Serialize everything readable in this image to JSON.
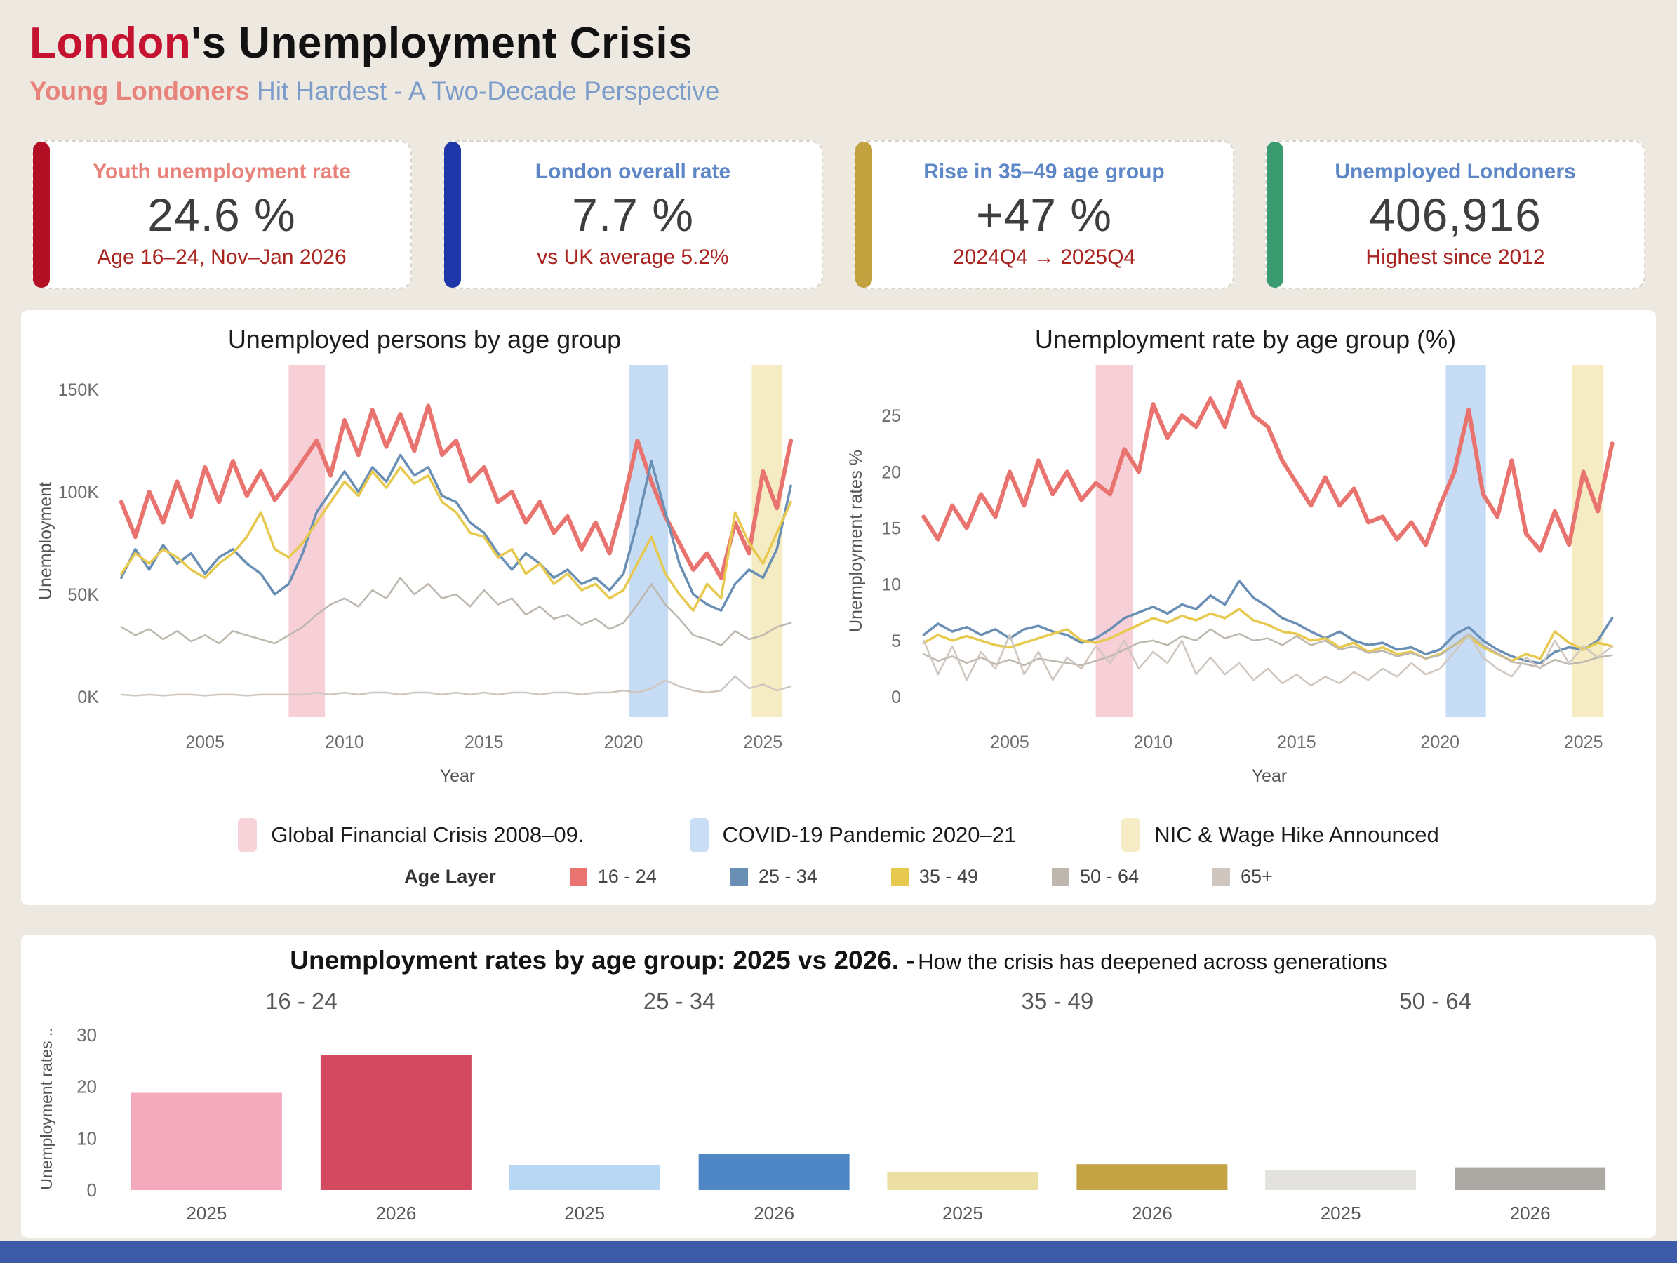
{
  "header": {
    "title_accent": "London",
    "title_rest": "'s Unemployment Crisis",
    "subtitle_accent": "Young Londoners",
    "subtitle_rest": " Hit Hardest - A Two-Decade Perspective"
  },
  "kpi_cards": [
    {
      "label": "Youth unemployment rate",
      "value": "24.6 %",
      "sub": "Age 16–24, Nov–Jan 2026",
      "accent": "#B30F24",
      "label_color": "#E8837B"
    },
    {
      "label": "London overall rate",
      "value": "7.7 %",
      "sub": "vs UK average 5.2%",
      "accent": "#1F36A8",
      "label_color": "#5D87C6"
    },
    {
      "label": "Rise in 35–49 age group",
      "value": "+47 %",
      "sub": "2024Q4 → 2025Q4",
      "accent": "#C2A23F",
      "label_color": "#5D87C6"
    },
    {
      "label": "Unemployed Londoners",
      "value": "406,916",
      "sub": "Highest since 2012",
      "accent": "#3B9B70",
      "label_color": "#5D87C6"
    }
  ],
  "legend": {
    "bands": [
      {
        "label": "Global Financial Crisis 2008–09.",
        "color": "#F7D2D9"
      },
      {
        "label": "COVID-19 Pandemic 2020–21",
        "color": "#C9DDF4"
      },
      {
        "label": "NIC & Wage Hike Announced",
        "color": "#F6EDC6"
      }
    ],
    "age": {
      "title": "Age Layer",
      "items": [
        {
          "label": "16 - 24",
          "color": "#E8736F"
        },
        {
          "label": "25 - 34",
          "color": "#6A8FB5"
        },
        {
          "label": "35 - 49",
          "color": "#E7C94F"
        },
        {
          "label": "50 - 64",
          "color": "#BDB7AE"
        },
        {
          "label": "65+",
          "color": "#CFC7BF"
        }
      ]
    }
  },
  "chart_data": [
    {
      "type": "line",
      "title": "Unemployed persons by age group",
      "xlabel": "Year",
      "ylabel": "Unemployment",
      "xlim": [
        2001.6,
        2026.5
      ],
      "ylim": [
        -10,
        162
      ],
      "yticks": [
        0,
        50,
        100,
        150
      ],
      "ytick_labels": [
        "0K",
        "50K",
        "100K",
        "150K"
      ],
      "xticks": [
        2005,
        2010,
        2015,
        2020,
        2025
      ],
      "bands": [
        {
          "name": "gfc",
          "from": 2008.0,
          "to": 2009.3,
          "color": "#F7CFD7"
        },
        {
          "name": "covid",
          "from": 2020.2,
          "to": 2021.6,
          "color": "#C6DCF4"
        },
        {
          "name": "nic",
          "from": 2024.6,
          "to": 2025.7,
          "color": "#F5ECC4"
        }
      ],
      "x": [
        2002,
        2002.5,
        2003,
        2003.5,
        2004,
        2004.5,
        2005,
        2005.5,
        2006,
        2006.5,
        2007,
        2007.5,
        2008,
        2008.5,
        2009,
        2009.5,
        2010,
        2010.5,
        2011,
        2011.5,
        2012,
        2012.5,
        2013,
        2013.5,
        2014,
        2014.5,
        2015,
        2015.5,
        2016,
        2016.5,
        2017,
        2017.5,
        2018,
        2018.5,
        2019,
        2019.5,
        2020,
        2020.5,
        2021,
        2021.5,
        2022,
        2022.5,
        2023,
        2023.5,
        2024,
        2024.5,
        2025,
        2025.5,
        2026
      ],
      "series": [
        {
          "name": "16 - 24",
          "color": "#E8736F",
          "width": 6,
          "values": [
            95,
            78,
            100,
            85,
            105,
            88,
            112,
            95,
            115,
            98,
            110,
            96,
            105,
            115,
            125,
            108,
            135,
            118,
            140,
            122,
            138,
            120,
            142,
            118,
            125,
            105,
            112,
            95,
            100,
            85,
            95,
            80,
            88,
            72,
            85,
            70,
            95,
            125,
            105,
            88,
            75,
            62,
            70,
            58,
            85,
            70,
            110,
            92,
            125
          ]
        },
        {
          "name": "25 - 34",
          "color": "#6A8FB5",
          "width": 3.5,
          "values": [
            58,
            72,
            62,
            74,
            65,
            70,
            60,
            68,
            72,
            65,
            60,
            50,
            55,
            70,
            90,
            100,
            110,
            100,
            112,
            105,
            118,
            108,
            112,
            98,
            95,
            85,
            80,
            70,
            62,
            70,
            65,
            58,
            62,
            55,
            58,
            52,
            60,
            85,
            115,
            90,
            65,
            50,
            45,
            42,
            55,
            62,
            58,
            72,
            103
          ]
        },
        {
          "name": "35 - 49",
          "color": "#E7C94F",
          "width": 3.5,
          "values": [
            60,
            70,
            65,
            72,
            68,
            62,
            58,
            65,
            70,
            78,
            90,
            72,
            68,
            75,
            85,
            95,
            105,
            98,
            110,
            102,
            112,
            104,
            108,
            95,
            90,
            80,
            78,
            68,
            72,
            60,
            65,
            55,
            60,
            52,
            55,
            48,
            52,
            65,
            78,
            60,
            50,
            42,
            55,
            48,
            90,
            75,
            65,
            80,
            95
          ]
        },
        {
          "name": "50 - 64",
          "color": "#BDB7AE",
          "width": 2.5,
          "values": [
            34,
            30,
            33,
            28,
            32,
            27,
            30,
            26,
            32,
            30,
            28,
            26,
            30,
            34,
            40,
            45,
            48,
            44,
            52,
            48,
            58,
            50,
            55,
            48,
            50,
            44,
            52,
            45,
            48,
            40,
            44,
            38,
            40,
            35,
            38,
            33,
            36,
            45,
            55,
            45,
            38,
            30,
            28,
            25,
            32,
            28,
            30,
            34,
            36
          ]
        },
        {
          "name": "65+",
          "color": "#CFC7BF",
          "width": 2.5,
          "values": [
            1,
            0.5,
            1,
            0.5,
            1,
            1,
            0.5,
            1,
            1,
            0.5,
            1,
            1,
            1,
            1,
            2,
            1,
            2,
            1,
            2,
            2,
            1,
            2,
            2,
            1,
            2,
            1,
            2,
            1,
            2,
            2,
            1,
            2,
            2,
            1,
            2,
            2,
            3,
            2,
            4,
            8,
            5,
            3,
            2,
            3,
            10,
            4,
            6,
            3,
            5
          ]
        }
      ]
    },
    {
      "type": "line",
      "title": "Unemployment rate by age group (%)",
      "xlabel": "Year",
      "ylabel": "Unemployment rates %",
      "xlim": [
        2001.6,
        2026.5
      ],
      "ylim": [
        -1.8,
        29.5
      ],
      "yticks": [
        0,
        5,
        10,
        15,
        20,
        25
      ],
      "ytick_labels": [
        "0",
        "5",
        "10",
        "15",
        "20",
        "25"
      ],
      "xticks": [
        2005,
        2010,
        2015,
        2020,
        2025
      ],
      "bands": [
        {
          "name": "gfc",
          "from": 2008.0,
          "to": 2009.3,
          "color": "#F7CFD7"
        },
        {
          "name": "covid",
          "from": 2020.2,
          "to": 2021.6,
          "color": "#C6DCF4"
        },
        {
          "name": "nic",
          "from": 2024.6,
          "to": 2025.7,
          "color": "#F5ECC4"
        }
      ],
      "x": [
        2002,
        2002.5,
        2003,
        2003.5,
        2004,
        2004.5,
        2005,
        2005.5,
        2006,
        2006.5,
        2007,
        2007.5,
        2008,
        2008.5,
        2009,
        2009.5,
        2010,
        2010.5,
        2011,
        2011.5,
        2012,
        2012.5,
        2013,
        2013.5,
        2014,
        2014.5,
        2015,
        2015.5,
        2016,
        2016.5,
        2017,
        2017.5,
        2018,
        2018.5,
        2019,
        2019.5,
        2020,
        2020.5,
        2021,
        2021.5,
        2022,
        2022.5,
        2023,
        2023.5,
        2024,
        2024.5,
        2025,
        2025.5,
        2026
      ],
      "series": [
        {
          "name": "16 - 24",
          "color": "#E8736F",
          "width": 6,
          "values": [
            16,
            14,
            17,
            15,
            18,
            16,
            20,
            17,
            21,
            18,
            20,
            17.5,
            19,
            18,
            22,
            20,
            26,
            23,
            25,
            24,
            26.5,
            24,
            28,
            25,
            24,
            21,
            19,
            17,
            19.5,
            17,
            18.5,
            15.5,
            16,
            14,
            15.5,
            13.5,
            17,
            20,
            25.5,
            18,
            16,
            21,
            14.5,
            13,
            16.5,
            13.5,
            20,
            16.5,
            22.5
          ]
        },
        {
          "name": "25 - 34",
          "color": "#6A8FB5",
          "width": 3.5,
          "values": [
            5.5,
            6.5,
            5.8,
            6.2,
            5.5,
            6.0,
            5.2,
            6.0,
            6.3,
            5.8,
            5.5,
            4.8,
            5.2,
            6.0,
            7.0,
            7.5,
            8.0,
            7.4,
            8.2,
            7.8,
            9.0,
            8.2,
            10.3,
            8.8,
            8.0,
            7.0,
            6.5,
            5.8,
            5.2,
            5.8,
            5.0,
            4.6,
            4.8,
            4.2,
            4.4,
            3.8,
            4.2,
            5.5,
            6.2,
            5.0,
            4.2,
            3.6,
            3.2,
            3.0,
            4.0,
            4.4,
            4.2,
            5.0,
            7.0
          ]
        },
        {
          "name": "35 - 49",
          "color": "#E7C94F",
          "width": 3.5,
          "values": [
            4.8,
            5.5,
            5.0,
            5.4,
            5.0,
            4.6,
            4.4,
            4.8,
            5.2,
            5.6,
            6.0,
            5.0,
            4.8,
            5.2,
            5.8,
            6.4,
            7.0,
            6.6,
            7.2,
            6.8,
            7.4,
            7.0,
            7.8,
            6.8,
            6.4,
            5.8,
            5.6,
            5.0,
            5.2,
            4.4,
            4.8,
            4.0,
            4.4,
            3.8,
            4.0,
            3.4,
            3.8,
            4.6,
            5.4,
            4.4,
            3.8,
            3.2,
            3.8,
            3.4,
            5.8,
            4.8,
            4.2,
            4.8,
            4.5
          ]
        },
        {
          "name": "50 - 64",
          "color": "#BDB7AE",
          "width": 2.5,
          "values": [
            3.8,
            3.2,
            3.6,
            3.0,
            3.5,
            2.9,
            3.3,
            2.8,
            3.4,
            3.2,
            3.0,
            2.8,
            3.2,
            3.6,
            4.2,
            4.8,
            5.0,
            4.6,
            5.4,
            5.0,
            6.0,
            5.2,
            5.6,
            5.0,
            5.2,
            4.6,
            5.4,
            4.6,
            5.0,
            4.2,
            4.5,
            3.9,
            4.1,
            3.6,
            3.9,
            3.4,
            3.7,
            4.6,
            5.6,
            4.6,
            3.9,
            3.1,
            2.9,
            2.6,
            3.3,
            2.9,
            3.1,
            3.5,
            3.7
          ]
        },
        {
          "name": "65+",
          "color": "#CFC7BF",
          "width": 2.5,
          "values": [
            5.0,
            2.0,
            4.5,
            1.5,
            4.0,
            2.5,
            5.5,
            2.0,
            4.0,
            1.5,
            3.5,
            2.5,
            4.5,
            3.0,
            5.0,
            2.5,
            4.0,
            3.0,
            5.0,
            2.0,
            3.5,
            2.0,
            3.0,
            1.5,
            2.5,
            1.2,
            2.0,
            1.0,
            1.8,
            1.2,
            2.2,
            1.5,
            2.5,
            1.8,
            3.0,
            2.0,
            2.5,
            4.0,
            5.5,
            3.5,
            2.5,
            1.8,
            3.5,
            2.5,
            5.0,
            3.0,
            4.5,
            3.5,
            4.5
          ]
        }
      ]
    },
    {
      "type": "bar",
      "title": "Unemployment rates by age group: 2025 vs 2026. -",
      "subtitle": "How the crisis has deepened across generations",
      "ylabel": "Unemployment rates ..",
      "ylim": [
        0,
        31.5
      ],
      "yticks": [
        0,
        10,
        20,
        30
      ],
      "groups": [
        {
          "label": "16 - 24",
          "bars": [
            {
              "label": "2025",
              "value": 18.8,
              "color": "#F4A9BD"
            },
            {
              "label": "2026",
              "value": 26.2,
              "color": "#D34960"
            }
          ]
        },
        {
          "label": "25 - 34",
          "bars": [
            {
              "label": "2025",
              "value": 4.8,
              "color": "#B8D7F3"
            },
            {
              "label": "2026",
              "value": 7.0,
              "color": "#4F86C5"
            }
          ]
        },
        {
          "label": "35 - 49",
          "bars": [
            {
              "label": "2025",
              "value": 3.4,
              "color": "#EBDFA4"
            },
            {
              "label": "2026",
              "value": 5.0,
              "color": "#C4A344"
            }
          ]
        },
        {
          "label": "50 - 64",
          "bars": [
            {
              "label": "2025",
              "value": 3.8,
              "color": "#E4E2DE"
            },
            {
              "label": "2026",
              "value": 4.4,
              "color": "#ACA9A4"
            }
          ]
        }
      ]
    }
  ]
}
